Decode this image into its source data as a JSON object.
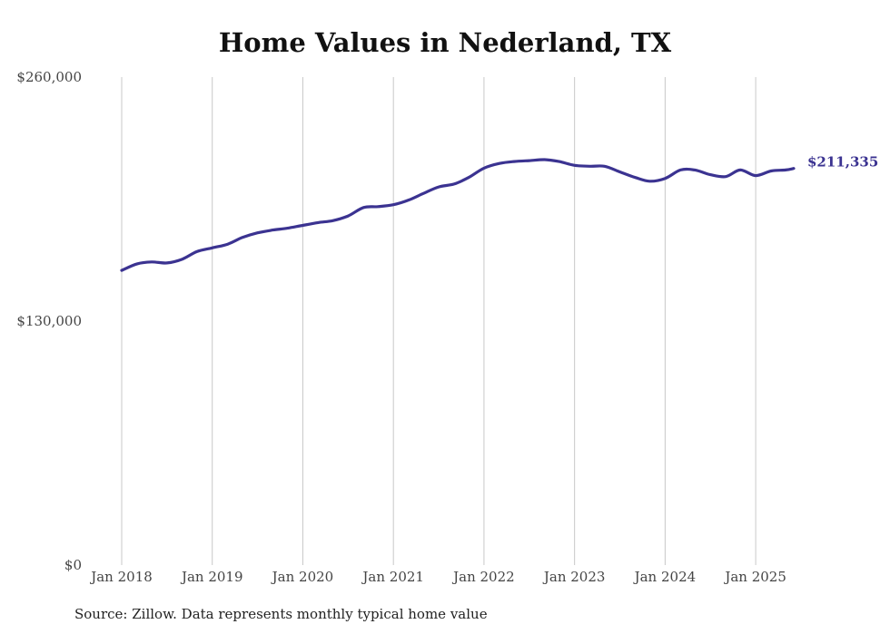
{
  "chart_data": {
    "type": "line",
    "title": "Home Values in Nederland, TX",
    "source": "Source: Zillow. Data represents monthly typical home value",
    "xlabel": "",
    "ylabel": "",
    "ylim": [
      0,
      260000
    ],
    "y_ticks": [
      {
        "value": 0,
        "label": "$0"
      },
      {
        "value": 130000,
        "label": "$130,000"
      },
      {
        "value": 260000,
        "label": "$260,000"
      }
    ],
    "x_ticks": [
      {
        "value": 2018,
        "label": "Jan 2018"
      },
      {
        "value": 2019,
        "label": "Jan 2019"
      },
      {
        "value": 2020,
        "label": "Jan 2020"
      },
      {
        "value": 2021,
        "label": "Jan 2021"
      },
      {
        "value": 2022,
        "label": "Jan 2022"
      },
      {
        "value": 2023,
        "label": "Jan 2023"
      },
      {
        "value": 2024,
        "label": "Jan 2024"
      },
      {
        "value": 2025,
        "label": "Jan 2025"
      }
    ],
    "xlim": [
      2018,
      2025.42
    ],
    "grid": "vertical",
    "line_color": "#3b3391",
    "end_label": "$211,335",
    "series": [
      {
        "x": [
          2018.0,
          2018.17,
          2018.33,
          2018.5,
          2018.67,
          2018.83,
          2019.0,
          2019.17,
          2019.33,
          2019.5,
          2019.67,
          2019.83,
          2020.0,
          2020.17,
          2020.33,
          2020.5,
          2020.67,
          2020.83,
          2021.0,
          2021.17,
          2021.33,
          2021.5,
          2021.67,
          2021.83,
          2022.0,
          2022.17,
          2022.33,
          2022.5,
          2022.67,
          2022.83,
          2023.0,
          2023.17,
          2023.33,
          2023.5,
          2023.67,
          2023.83,
          2024.0,
          2024.17,
          2024.33,
          2024.5,
          2024.67,
          2024.83,
          2025.0,
          2025.17,
          2025.33,
          2025.42
        ],
        "y": [
          157000,
          160500,
          161500,
          161000,
          163000,
          167000,
          169000,
          171000,
          174500,
          177000,
          178500,
          179500,
          181000,
          182500,
          183500,
          186000,
          190500,
          191000,
          192000,
          194500,
          198000,
          201500,
          203000,
          206500,
          211500,
          214000,
          215000,
          215500,
          216000,
          215000,
          213000,
          212500,
          212500,
          209500,
          206500,
          204500,
          206000,
          210500,
          210500,
          208000,
          207000,
          210500,
          207500,
          210000,
          210500,
          211335
        ]
      }
    ]
  }
}
